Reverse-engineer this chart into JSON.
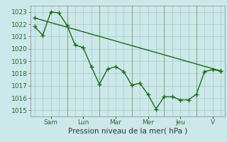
{
  "bg_color": "#cce8e8",
  "grid_color": "#aacccc",
  "line_color": "#1a6b1a",
  "marker": "+",
  "markersize": 5,
  "linewidth": 1.0,
  "line1_x": [
    0,
    1,
    2,
    3,
    4,
    5,
    6,
    7,
    8,
    9,
    10,
    11,
    12,
    13,
    14,
    15,
    16,
    17,
    18,
    19,
    20,
    21,
    22,
    23
  ],
  "line1_y": [
    1021.8,
    1021.1,
    1023.0,
    1022.9,
    1021.9,
    1020.3,
    1020.1,
    1018.55,
    1017.1,
    1018.35,
    1018.55,
    1018.15,
    1017.05,
    1017.2,
    1016.3,
    1015.1,
    1016.1,
    1016.1,
    1015.85,
    1015.85,
    1016.3,
    1018.15,
    1018.3,
    1018.2
  ],
  "line2_x": [
    0,
    23
  ],
  "line2_y": [
    1022.5,
    1018.2
  ],
  "day_positions": [
    2,
    6,
    10,
    14,
    18,
    22
  ],
  "day_labels": [
    "Sam",
    "Lun",
    "Mar",
    "Mer",
    "Jeu",
    "V"
  ],
  "day_vlines": [
    4,
    8,
    12,
    16,
    20
  ],
  "ylim": [
    1014.5,
    1023.5
  ],
  "xlim": [
    -0.5,
    23.5
  ],
  "yticks": [
    1015,
    1016,
    1017,
    1018,
    1019,
    1020,
    1021,
    1022,
    1023
  ],
  "xlabel": "Pression niveau de la mer( hPa )",
  "xlabel_fontsize": 7.5,
  "tick_fontsize": 6.5,
  "tick_color": "#336633"
}
